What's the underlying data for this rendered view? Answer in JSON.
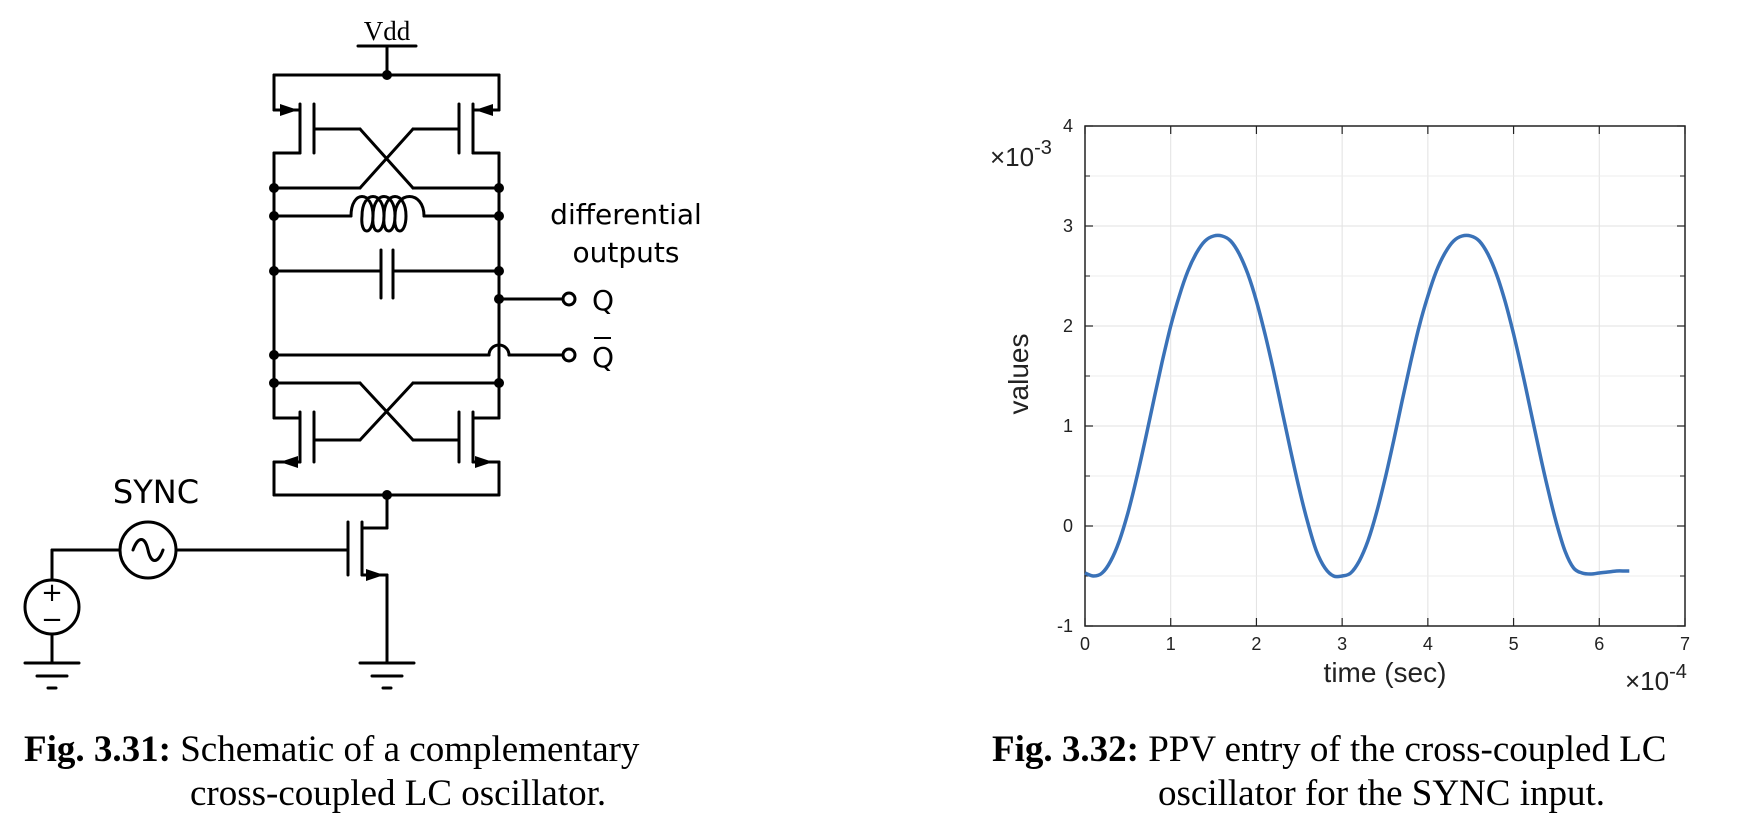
{
  "schematic": {
    "vdd_label": "Vdd",
    "sync_label": "SYNC",
    "outputs_label_line1": "differential",
    "outputs_label_line2": "outputs",
    "q_label": "Q",
    "qbar_label": "Q",
    "source_plus": "+",
    "source_minus": "−"
  },
  "captions": {
    "left": {
      "number": "Fig. 3.31:",
      "line1": "Schematic of a complementary",
      "line2": "cross-coupled LC oscillator."
    },
    "right": {
      "number": "Fig. 3.32:",
      "line1": "PPV entry of the cross-coupled LC",
      "line2": "oscillator for the SYNC input."
    }
  },
  "chart_data": {
    "type": "line",
    "xlabel": "time (sec)",
    "ylabel": "values",
    "x_multiplier": "×10",
    "x_multiplier_exp": "-4",
    "y_multiplier": "×10",
    "y_multiplier_exp": "-3",
    "xlim": [
      0,
      7
    ],
    "ylim": [
      -1,
      4
    ],
    "xticks": [
      "0",
      "1",
      "2",
      "3",
      "4",
      "5",
      "6",
      "7"
    ],
    "yticks": [
      "-1",
      "0",
      "1",
      "2",
      "3",
      "4"
    ],
    "grid": true,
    "line_color": "#3a72b8",
    "series": [
      {
        "x": [
          0,
          0.1,
          0.2,
          0.3,
          0.4,
          0.5,
          0.6,
          0.7,
          0.8,
          0.9,
          1.0,
          1.1,
          1.2,
          1.3,
          1.4,
          1.5,
          1.6,
          1.7,
          1.8,
          1.9,
          2.0,
          2.1,
          2.2,
          2.3,
          2.4,
          2.5,
          2.6,
          2.7,
          2.8,
          2.9,
          3.0,
          3.1,
          3.2,
          3.3,
          3.4,
          3.5,
          3.6,
          3.7,
          3.8,
          3.9,
          4.0,
          4.1,
          4.2,
          4.3,
          4.4,
          4.5,
          4.6,
          4.7,
          4.8,
          4.9,
          5.0,
          5.1,
          5.2,
          5.3,
          5.4,
          5.5,
          5.6,
          5.7,
          5.8,
          5.9,
          6.0,
          6.1,
          6.2,
          6.3,
          6.35
        ],
        "values": [
          -0.47,
          -0.5,
          -0.47,
          -0.35,
          -0.15,
          0.13,
          0.47,
          0.85,
          1.25,
          1.64,
          2.0,
          2.3,
          2.55,
          2.73,
          2.85,
          2.9,
          2.9,
          2.85,
          2.72,
          2.52,
          2.25,
          1.92,
          1.55,
          1.15,
          0.75,
          0.37,
          0.03,
          -0.25,
          -0.42,
          -0.5,
          -0.5,
          -0.47,
          -0.35,
          -0.15,
          0.13,
          0.47,
          0.85,
          1.25,
          1.64,
          2.0,
          2.3,
          2.55,
          2.73,
          2.85,
          2.9,
          2.9,
          2.85,
          2.72,
          2.52,
          2.25,
          1.92,
          1.55,
          1.15,
          0.75,
          0.37,
          0.03,
          -0.25,
          -0.42,
          -0.47,
          -0.48,
          -0.47,
          -0.46,
          -0.45,
          -0.45,
          -0.45
        ]
      }
    ]
  }
}
